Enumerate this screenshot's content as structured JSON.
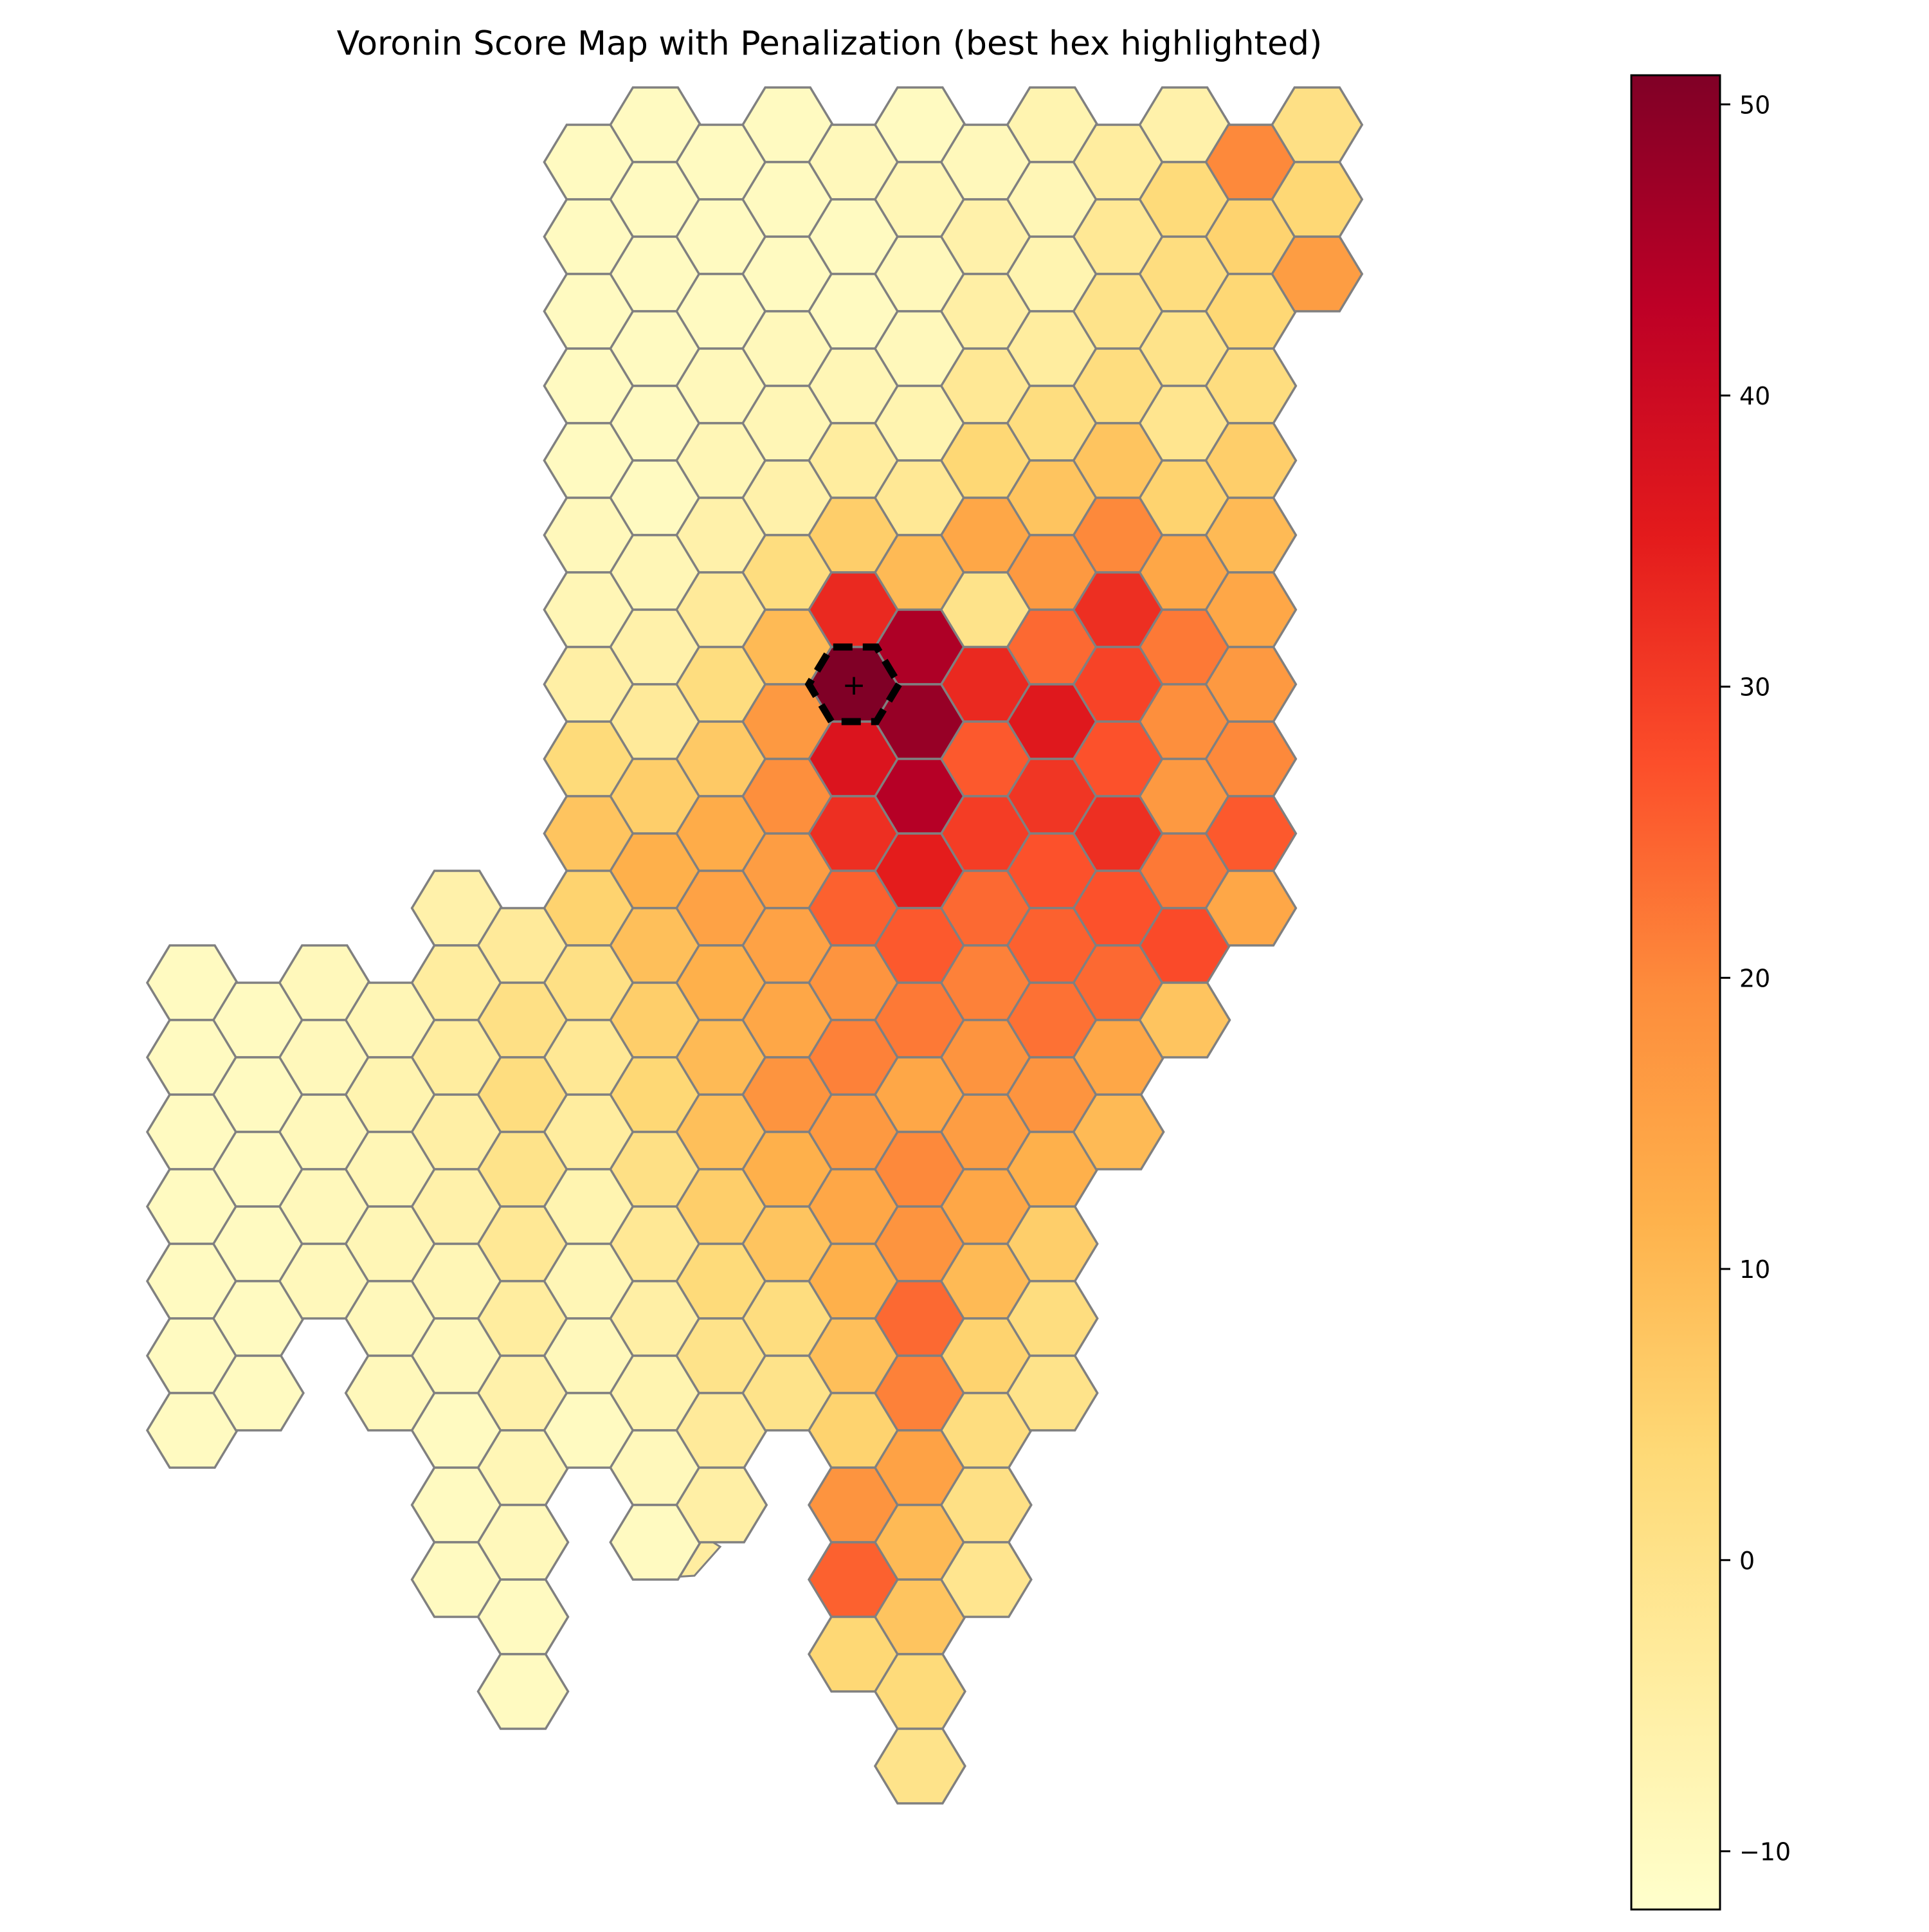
{
  "title": "Voronin Score Map with Penalization (best hex highlighted)",
  "colorbar": {
    "colormap": "YlOrRd",
    "vmin": -12,
    "vmax": 51,
    "ticks": [
      50,
      40,
      30,
      20,
      10,
      0,
      -10
    ],
    "tick_labels": [
      "50",
      "40",
      "30",
      "20",
      "10",
      "0",
      "−10"
    ]
  },
  "style": {
    "hex_edge_color": "#808080",
    "background": "#ffffff",
    "best_hex_outline": "#000000"
  },
  "map": {
    "best_marker": "+",
    "hex_columns": [
      {
        "col": 0,
        "row0": 0,
        "scores": [
          -10,
          -10,
          -10,
          -10,
          -10,
          -10,
          -10
        ]
      },
      {
        "col": 1,
        "row0": 0,
        "scores": [
          -10,
          -10,
          -10,
          -10,
          -10,
          -10
        ]
      },
      {
        "col": 2,
        "row0": 0,
        "scores": [
          -9,
          -9,
          -9,
          -9,
          -9
        ]
      },
      {
        "col": 3,
        "row0": 0,
        "scores": [
          -8,
          -7,
          -8,
          -8,
          -9,
          -9
        ]
      },
      {
        "col": 4,
        "row0": -1,
        "scores": [
          -6,
          -4,
          -4,
          -5,
          -6,
          -8,
          -9,
          -10,
          -10,
          -10
        ]
      },
      {
        "col": 5,
        "row0": -1,
        "scores": [
          -3,
          1,
          2,
          0,
          -2,
          -4,
          -6,
          -8,
          -9,
          -10,
          -10
        ]
      },
      {
        "col": 6,
        "row0": -15,
        "scores": [
          -10,
          -10,
          -10,
          -10,
          -10,
          -10,
          -10,
          -10,
          -10,
          -9,
          -8,
          -5,
          3,
          8,
          5,
          1,
          -2,
          -4,
          -7,
          -8,
          -9,
          -10
        ]
      },
      {
        "col": 7,
        "row0": -15,
        "scores": [
          -10,
          -10,
          -10,
          -10,
          -10,
          -10,
          -10,
          -10,
          -10,
          -8,
          -6,
          -3,
          6,
          12,
          9,
          6,
          4,
          1,
          -2,
          -5,
          -7,
          -9,
          -10
        ]
      },
      {
        "col": 8,
        "row0": -16,
        "scores": [
          -10,
          -10,
          -10,
          -10,
          -10,
          -10,
          -10,
          -10,
          -9,
          -8,
          -6,
          -3,
          2,
          7,
          13,
          15,
          12,
          10,
          9,
          6,
          3,
          0,
          -3,
          -5
        ]
      },
      {
        "col": 9,
        "row0": -16,
        "scores": [
          -10,
          -10,
          -10,
          -10,
          -10,
          -10,
          -10,
          -9,
          -8,
          -6,
          2,
          10,
          17,
          19,
          16,
          15,
          14,
          18,
          12,
          8,
          2,
          0
        ]
      },
      {
        "col": 10,
        "row0": -16,
        "scores": [
          -10,
          -10,
          -10,
          -10,
          -10,
          -9,
          -10,
          -10,
          -8,
          -4,
          6,
          33,
          51,
          37,
          32,
          25,
          18,
          21,
          17,
          14,
          12,
          9,
          5,
          18,
          25,
          4
        ]
      },
      {
        "col": 11,
        "row0": -16,
        "scores": [
          -10,
          -10,
          -10,
          -10,
          -10,
          -8,
          -9,
          -9,
          -7,
          -2,
          10,
          45,
          48,
          44,
          35,
          26,
          22,
          14,
          20,
          18,
          24,
          21,
          15,
          10,
          8,
          3,
          0
        ]
      },
      {
        "col": 12,
        "row0": -15,
        "scores": [
          -10,
          -10,
          -10,
          -10,
          -9,
          -6,
          -5,
          -2,
          4,
          14,
          0,
          33,
          26,
          30,
          24,
          21,
          18,
          16,
          14,
          10,
          5,
          2,
          1,
          -1
        ]
      },
      {
        "col": 13,
        "row0": -14,
        "scores": [
          -9,
          -8,
          -7,
          -8,
          -7,
          -4,
          2,
          8,
          17,
          24,
          36,
          31,
          27,
          25,
          23,
          18,
          12,
          6,
          2,
          0
        ]
      },
      {
        "col": 14,
        "row0": -14,
        "scores": [
          -8,
          -6,
          -5,
          -4,
          -2,
          0,
          2,
          8,
          20,
          32,
          29,
          27,
          32,
          27,
          24,
          14,
          10
        ]
      },
      {
        "col": 15,
        "row0": -12,
        "scores": [
          -6,
          3,
          2,
          0,
          -1,
          5,
          14,
          22,
          19,
          17,
          22,
          28,
          8
        ]
      },
      {
        "col": 16,
        "row0": -13,
        "scores": [
          8,
          -2,
          20,
          5,
          4,
          2,
          6,
          10,
          14,
          17,
          20,
          26,
          14
        ]
      },
      {
        "col": 17,
        "row0": -12,
        "scores": [
          1,
          4,
          16
        ]
      }
    ]
  }
}
